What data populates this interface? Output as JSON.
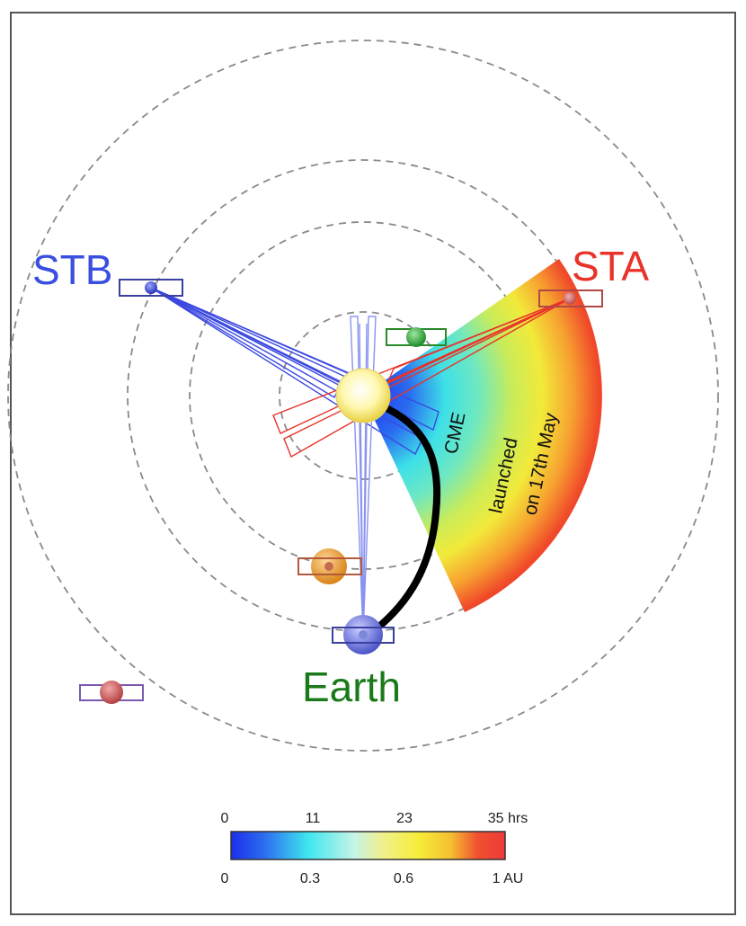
{
  "labels": {
    "stb": "STB",
    "sta": "STA",
    "earth": "Earth",
    "cme_line1": "CME",
    "cme_line2": "launched",
    "cme_line3": "on 17th May"
  },
  "colorbar": {
    "top_ticks": [
      "0",
      "11",
      "23",
      "35 hrs"
    ],
    "bottom_ticks": [
      "0",
      "0.3",
      "0.6",
      "1 AU"
    ]
  },
  "colors": {
    "stb": "#3a4fe0",
    "sta": "#e8332a",
    "earth": "#1a7a1a",
    "orbit": "#888888",
    "cme_track": "#000000"
  },
  "icons": [
    "sun-icon",
    "earth-planet-icon",
    "stb-spacecraft-icon",
    "sta-spacecraft-icon",
    "green-planet-spacecraft-icon",
    "orange-planet-spacecraft-icon",
    "red-planet-spacecraft-icon"
  ]
}
